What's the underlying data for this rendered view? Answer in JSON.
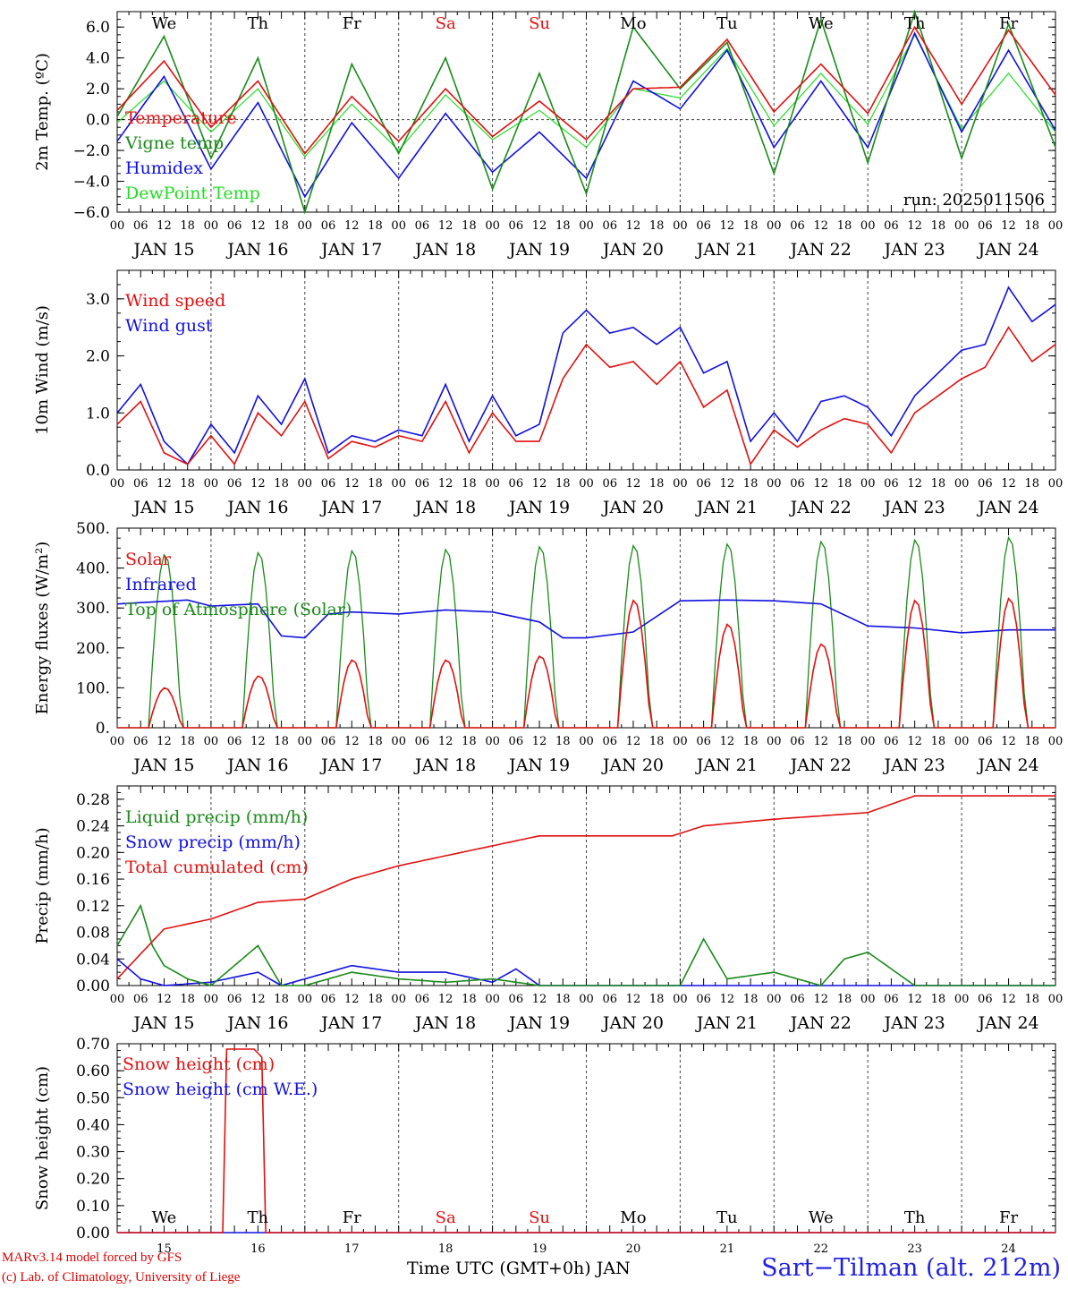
{
  "footer": {
    "model_line": "MARv3.14 model forced by GFS",
    "credit_line": "(c) Lab. of Climatology, University of Liege",
    "time_axis": "Time UTC (GMT+0h) JAN",
    "station": "Sart−Tilman (alt. 212m)"
  },
  "run_label": "run: 2025011506",
  "hour_ticks": [
    "00",
    "06",
    "12",
    "18"
  ],
  "date_labels": [
    "JAN 15",
    "JAN 16",
    "JAN 17",
    "JAN 18",
    "JAN 19",
    "JAN 20",
    "JAN 21",
    "JAN 22",
    "JAN 23",
    "JAN 24"
  ],
  "day_labels": [
    "We",
    "Th",
    "Fr",
    "Sa",
    "Su",
    "Mo",
    "Tu",
    "We",
    "Th",
    "Fr"
  ],
  "weekend_days": [
    "Sa",
    "Su"
  ],
  "day_numbers": [
    "15",
    "16",
    "17",
    "18",
    "19",
    "20",
    "21",
    "22",
    "23",
    "24"
  ],
  "colors": {
    "red": "#e01010",
    "green": "#1a8a1a",
    "blue": "#1010e0",
    "lightgreen": "#22dd22",
    "grid": "#444444",
    "axis": "#000000"
  },
  "chart_data": [
    {
      "type": "line",
      "ylabel": "2m Temp. (ºC)",
      "ylim": [
        -6,
        7
      ],
      "yticks": [
        6,
        4,
        2,
        0,
        -2,
        -4,
        -6
      ],
      "ytick_labels": [
        "6.0",
        "4.0",
        "2.0",
        "0.0",
        "−2.0",
        "−4.0",
        "−6.0"
      ],
      "x_hours_since_jan15_00": [
        0,
        12,
        24,
        36,
        48,
        60,
        72,
        84,
        96,
        108,
        120,
        132,
        144,
        156,
        168,
        180,
        192,
        204,
        216,
        228,
        240
      ],
      "series": [
        {
          "name": "Temperature",
          "color": "red",
          "values": [
            0.6,
            3.8,
            -0.5,
            2.5,
            -2.2,
            1.5,
            -1.4,
            2.0,
            -1.1,
            1.2,
            -1.3,
            2.0,
            2.1,
            5.2,
            0.5,
            3.6,
            0.4,
            6.0,
            1.0,
            5.8,
            1.6
          ]
        },
        {
          "name": "Vigne temp",
          "color": "green",
          "values": [
            0.2,
            5.4,
            -2.5,
            4.0,
            -6.0,
            3.6,
            -2.2,
            4.0,
            -4.5,
            3.0,
            -4.8,
            6.0,
            2.0,
            5.0,
            -3.5,
            6.5,
            -2.8,
            7.0,
            -2.5,
            6.2,
            -1.8
          ]
        },
        {
          "name": "Humidex",
          "color": "blue",
          "values": [
            -1.4,
            2.8,
            -3.2,
            1.1,
            -5.0,
            -0.2,
            -3.8,
            0.4,
            -3.4,
            -0.8,
            -3.8,
            2.5,
            0.7,
            4.5,
            -1.8,
            2.5,
            -1.8,
            5.6,
            -0.8,
            4.5,
            -0.7
          ]
        },
        {
          "name": "DewPoint Temp",
          "color": "lightgreen",
          "values": [
            -0.2,
            2.5,
            -0.8,
            2.0,
            -2.4,
            1.0,
            -2.0,
            1.6,
            -1.3,
            0.6,
            -1.8,
            2.0,
            1.4,
            4.6,
            -0.4,
            3.0,
            -0.3,
            5.5,
            -0.6,
            3.0,
            -0.8
          ]
        }
      ]
    },
    {
      "type": "line",
      "ylabel": "10m Wind (m/s)",
      "ylim": [
        0,
        3.5
      ],
      "yticks": [
        3,
        2,
        1,
        0
      ],
      "ytick_labels": [
        "3.0",
        "2.0",
        "1.0",
        "0.0"
      ],
      "x_hours_since_jan15_00": [
        0,
        6,
        12,
        18,
        24,
        30,
        36,
        42,
        48,
        54,
        60,
        66,
        72,
        78,
        84,
        90,
        96,
        102,
        108,
        114,
        120,
        126,
        132,
        138,
        144,
        150,
        156,
        162,
        168,
        174,
        180,
        186,
        192,
        198,
        204,
        210,
        216,
        222,
        228,
        234,
        240
      ],
      "series": [
        {
          "name": "Wind speed",
          "color": "red",
          "values": [
            0.8,
            1.2,
            0.3,
            0.1,
            0.6,
            0.1,
            1.0,
            0.6,
            1.2,
            0.2,
            0.5,
            0.4,
            0.6,
            0.5,
            1.2,
            0.3,
            1.0,
            0.5,
            0.5,
            1.6,
            2.2,
            1.8,
            1.9,
            1.5,
            1.9,
            1.1,
            1.4,
            0.1,
            0.7,
            0.4,
            0.7,
            0.9,
            0.8,
            0.3,
            1.0,
            1.3,
            1.6,
            1.8,
            2.5,
            1.9,
            2.2
          ]
        },
        {
          "name": "Wind gust",
          "color": "blue",
          "values": [
            1.0,
            1.5,
            0.5,
            0.1,
            0.8,
            0.3,
            1.3,
            0.8,
            1.6,
            0.3,
            0.6,
            0.5,
            0.7,
            0.6,
            1.5,
            0.5,
            1.3,
            0.6,
            0.8,
            2.4,
            2.8,
            2.4,
            2.5,
            2.2,
            2.5,
            1.7,
            1.9,
            0.5,
            1.0,
            0.5,
            1.2,
            1.3,
            1.1,
            0.6,
            1.3,
            1.7,
            2.1,
            2.2,
            3.2,
            2.6,
            2.9
          ]
        }
      ]
    },
    {
      "type": "line",
      "ylabel": "Energy fluxes (W/m²)",
      "ylim": [
        0,
        500
      ],
      "yticks": [
        500,
        400,
        300,
        200,
        100,
        0
      ],
      "ytick_labels": [
        "500.",
        "400.",
        "300.",
        "200.",
        "100.",
        "0."
      ],
      "daily_noon_peaks": {
        "Solar": [
          100,
          130,
          170,
          170,
          180,
          320,
          260,
          210,
          320,
          325
        ],
        "Top of Atmosphere (Solar)": [
          435,
          440,
          445,
          448,
          455,
          458,
          462,
          468,
          472,
          478
        ]
      },
      "series": [
        {
          "name": "Solar",
          "color": "red"
        },
        {
          "name": "Infrared",
          "color": "blue",
          "x_hours_since_jan15_00": [
            0,
            18,
            24,
            36,
            42,
            48,
            54,
            60,
            72,
            84,
            96,
            108,
            114,
            120,
            132,
            144,
            156,
            168,
            180,
            192,
            204,
            216,
            228,
            240
          ],
          "values": [
            310,
            320,
            305,
            310,
            230,
            225,
            285,
            290,
            285,
            295,
            290,
            265,
            225,
            225,
            240,
            318,
            320,
            318,
            310,
            255,
            250,
            238,
            245,
            245
          ]
        },
        {
          "name": "Top of Atmosphere (Solar)",
          "color": "green"
        }
      ]
    },
    {
      "type": "line",
      "ylabel": "Precip (mm/h)",
      "ylim": [
        0,
        0.3
      ],
      "yticks": [
        0.28,
        0.24,
        0.2,
        0.16,
        0.12,
        0.08,
        0.04,
        0.0
      ],
      "ytick_labels": [
        "0.28",
        "0.24",
        "0.20",
        "0.16",
        "0.12",
        "0.08",
        "0.04",
        "0.00"
      ],
      "series": [
        {
          "name": "Liquid precip (mm/h)",
          "color": "green",
          "x_hours_since_jan15_00": [
            0,
            6,
            9,
            12,
            18,
            24,
            36,
            42,
            48,
            60,
            72,
            84,
            96,
            108,
            120,
            144,
            150,
            156,
            168,
            180,
            186,
            192,
            204,
            216,
            228,
            240
          ],
          "values": [
            0.06,
            0.12,
            0.06,
            0.03,
            0.01,
            0.0,
            0.06,
            0.0,
            0.0,
            0.02,
            0.01,
            0.005,
            0.01,
            0.0,
            0.0,
            0.0,
            0.07,
            0.01,
            0.02,
            0.0,
            0.04,
            0.05,
            0.0,
            0.0,
            0.0,
            0.0
          ]
        },
        {
          "name": "Snow precip (mm/h)",
          "color": "blue",
          "x_hours_since_jan15_00": [
            0,
            6,
            12,
            24,
            36,
            42,
            48,
            60,
            72,
            84,
            96,
            102,
            108,
            120,
            144,
            168,
            192,
            216,
            240
          ],
          "values": [
            0.04,
            0.01,
            0.0,
            0.005,
            0.02,
            0.0,
            0.01,
            0.03,
            0.02,
            0.02,
            0.005,
            0.025,
            0.0,
            0.0,
            0.0,
            0.0,
            0.0,
            0.0,
            0.0
          ]
        },
        {
          "name": "Total cumulated (cm)",
          "color": "red",
          "x_hours_since_jan15_00": [
            0,
            12,
            24,
            36,
            48,
            60,
            72,
            84,
            96,
            108,
            120,
            132,
            142,
            150,
            168,
            192,
            204,
            216,
            240
          ],
          "values": [
            0.01,
            0.085,
            0.1,
            0.125,
            0.13,
            0.16,
            0.18,
            0.195,
            0.21,
            0.225,
            0.225,
            0.225,
            0.225,
            0.24,
            0.25,
            0.26,
            0.285,
            0.285,
            0.285
          ]
        }
      ]
    },
    {
      "type": "line",
      "ylabel": "Snow height (cm)",
      "ylim": [
        0,
        0.7
      ],
      "yticks": [
        0.7,
        0.6,
        0.5,
        0.4,
        0.3,
        0.2,
        0.1,
        0.0
      ],
      "ytick_labels": [
        "0.70",
        "0.60",
        "0.50",
        "0.40",
        "0.30",
        "0.20",
        "0.10",
        "0.00"
      ],
      "series": [
        {
          "name": "Snow height (cm)",
          "color": "red",
          "x_hours_since_jan15_00": [
            0,
            27,
            28,
            35,
            37,
            38,
            240
          ],
          "values": [
            0,
            0,
            0.68,
            0.68,
            0.65,
            0,
            0
          ]
        },
        {
          "name": "Snow height (cm W.E.)",
          "color": "blue",
          "x_hours_since_jan15_00": [
            0,
            240
          ],
          "values": [
            0,
            0
          ]
        }
      ]
    }
  ]
}
